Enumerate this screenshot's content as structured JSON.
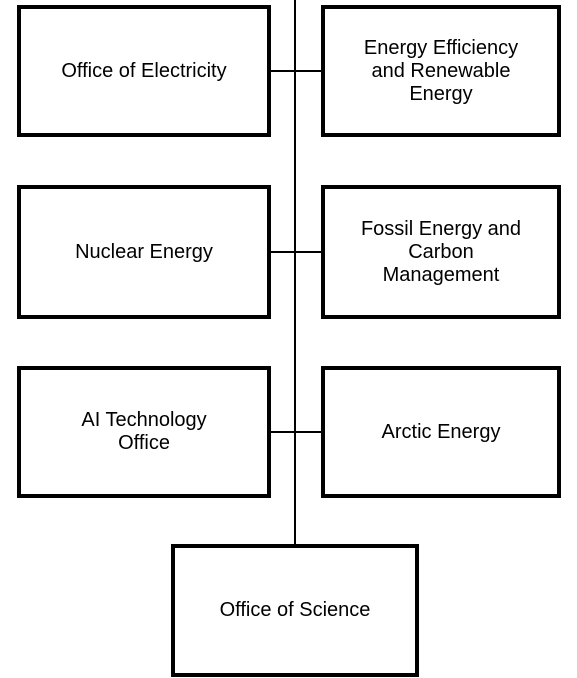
{
  "nodes": [
    {
      "label": "Office of Electricity"
    },
    {
      "label": "Energy Efficiency and Renewable Energy"
    },
    {
      "label": "Nuclear Energy"
    },
    {
      "label": "Fossil Energy and Carbon Management"
    },
    {
      "label": "AI Technology Office"
    },
    {
      "label": "Arctic Energy"
    },
    {
      "label": "Office of Science"
    }
  ]
}
